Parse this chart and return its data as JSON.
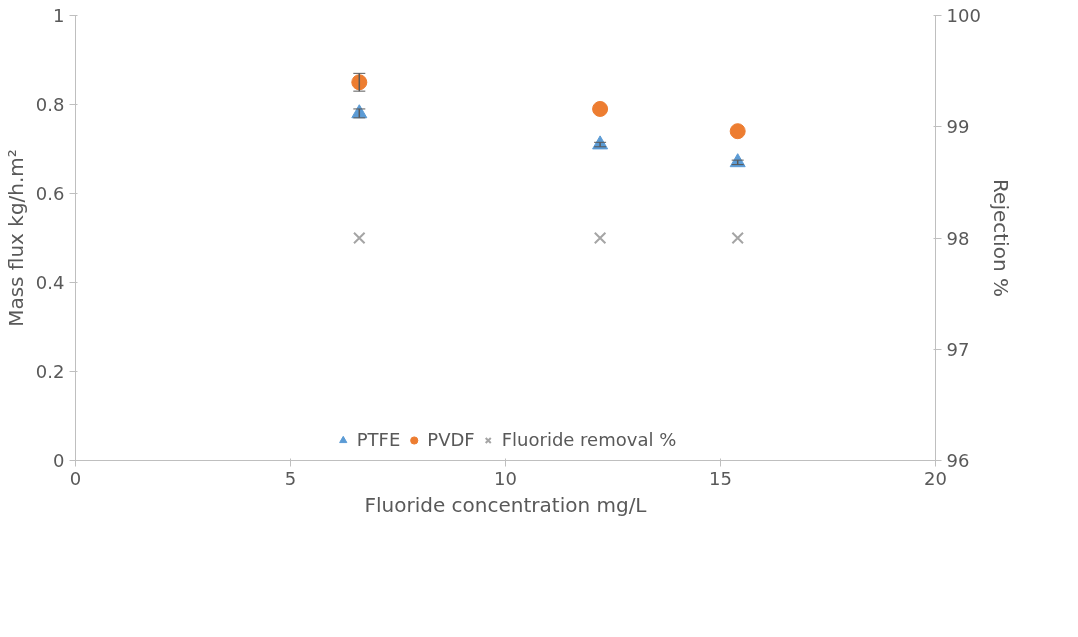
{
  "chart_data": {
    "type": "scatter",
    "xlabel": "Fluoride concentration mg/L",
    "ylabel": "Mass flux kg/h.m²",
    "y2label": "Rejection %",
    "x": [
      6.6,
      12.2,
      15.4
    ],
    "series": [
      {
        "name": "PTFE",
        "color": "#5b9bd5",
        "marker": "triangle",
        "values": [
          0.78,
          0.71,
          0.67
        ],
        "errors": [
          0.01,
          0.005,
          0.005
        ]
      },
      {
        "name": "PVDF",
        "color": "#ed7d31",
        "marker": "circle",
        "values": [
          0.85,
          0.79,
          0.74
        ],
        "errors": [
          0.02,
          null,
          null
        ]
      },
      {
        "name": "Fluoride removal %",
        "color": "#a5a5a5",
        "marker": "cross",
        "axis": "y2",
        "values": [
          98,
          98,
          98
        ]
      }
    ],
    "xlim": [
      0,
      20
    ],
    "xticks": [
      0,
      5,
      10,
      15,
      20
    ],
    "ylim": [
      0,
      1
    ],
    "yticks": [
      0,
      0.2,
      0.4,
      0.6,
      0.8,
      1
    ],
    "y2lim": [
      96,
      100
    ],
    "y2ticks": [
      96,
      97,
      98,
      99,
      100
    ],
    "grid": false,
    "legend": "bottom"
  }
}
